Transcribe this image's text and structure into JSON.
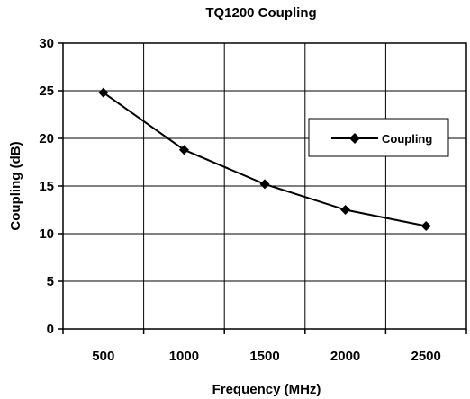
{
  "chart_data": {
    "type": "line",
    "title": "TQ1200 Coupling",
    "xlabel": "Frequency (MHz)",
    "ylabel": "Coupling (dB)",
    "categories": [
      "500",
      "1000",
      "1500",
      "2000",
      "2500"
    ],
    "ylim": [
      0,
      30
    ],
    "yticks": [
      "0",
      "5",
      "10",
      "15",
      "20",
      "25",
      "30"
    ],
    "grid": true,
    "legend_position": "right",
    "series": [
      {
        "name": "Coupling",
        "color": "#000000",
        "marker": "diamond",
        "values": [
          24.8,
          18.8,
          15.2,
          12.5,
          10.8
        ]
      }
    ]
  }
}
